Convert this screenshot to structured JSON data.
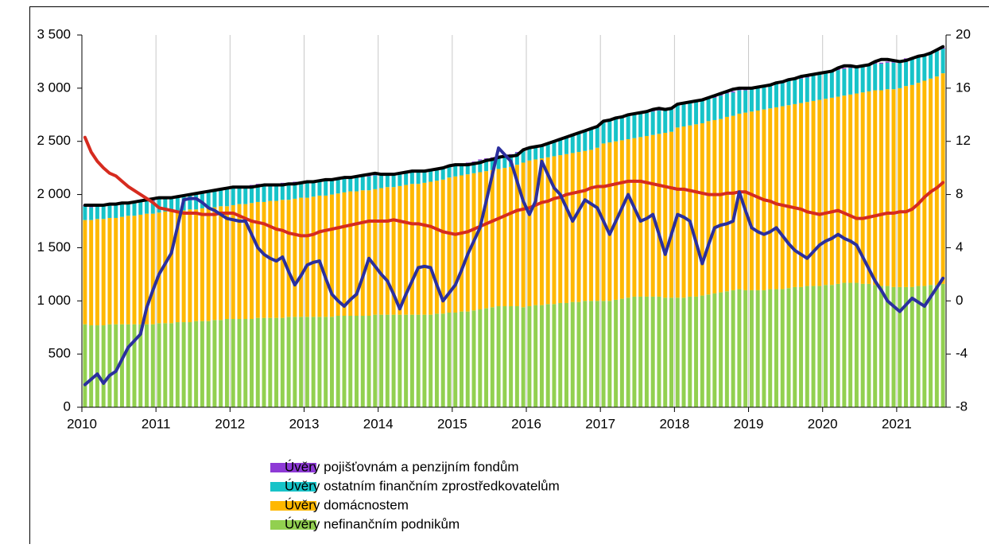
{
  "chart_data": {
    "type": "combo",
    "categories": [
      "2010",
      null,
      null,
      null,
      null,
      null,
      null,
      null,
      null,
      null,
      null,
      null,
      "2011",
      null,
      null,
      null,
      null,
      null,
      null,
      null,
      null,
      null,
      null,
      null,
      "2012",
      null,
      null,
      null,
      null,
      null,
      null,
      null,
      null,
      null,
      null,
      null,
      "2013",
      null,
      null,
      null,
      null,
      null,
      null,
      null,
      null,
      null,
      null,
      null,
      "2014",
      null,
      null,
      null,
      null,
      null,
      null,
      null,
      null,
      null,
      null,
      null,
      "2015",
      null,
      null,
      null,
      null,
      null,
      null,
      null,
      null,
      null,
      null,
      null,
      "2016",
      null,
      null,
      null,
      null,
      null,
      null,
      null,
      null,
      null,
      null,
      null,
      "2017",
      null,
      null,
      null,
      null,
      null,
      null,
      null,
      null,
      null,
      null,
      null,
      "2018",
      null,
      null,
      null,
      null,
      null,
      null,
      null,
      null,
      null,
      null,
      null,
      "2019",
      null,
      null,
      null,
      null,
      null,
      null,
      null,
      null,
      null,
      null,
      null,
      "2020",
      null,
      null,
      null,
      null,
      null,
      null,
      null,
      null,
      null,
      null,
      null,
      "2021",
      null,
      null,
      null,
      null,
      null,
      null,
      null
    ],
    "ylim": [
      0,
      3500
    ],
    "yticks": [
      0,
      500,
      {
        "value": 1000,
        "label": "1 000"
      },
      {
        "value": 1500,
        "label": "1 500"
      },
      {
        "value": 2000,
        "label": "2 000"
      },
      {
        "value": 2500,
        "label": "2 500"
      },
      {
        "value": 3000,
        "label": "3 000"
      },
      {
        "value": 3500,
        "label": "3 500"
      }
    ],
    "y2lim": [
      -8,
      20
    ],
    "y2ticks": [
      -8,
      -4,
      0,
      4,
      8,
      12,
      16,
      20
    ],
    "grid": "x",
    "series": [
      {
        "name": "Úvěry pojišťovnám a penzijním fondům",
        "type": "bar",
        "color": "#8e3ad6",
        "values": [
          10,
          10,
          10,
          10,
          10,
          10,
          10,
          10,
          10,
          10,
          10,
          10,
          10,
          10,
          10,
          10,
          10,
          10,
          10,
          10,
          10,
          10,
          10,
          10,
          10,
          10,
          10,
          10,
          10,
          10,
          10,
          10,
          10,
          10,
          10,
          10,
          10,
          10,
          10,
          10,
          10,
          10,
          10,
          10,
          10,
          10,
          10,
          10,
          10,
          10,
          10,
          10,
          10,
          10,
          10,
          10,
          10,
          10,
          10,
          10,
          10,
          10,
          10,
          10,
          10,
          10,
          10,
          10,
          10,
          10,
          10,
          10,
          10,
          10,
          10,
          10,
          10,
          10,
          10,
          10,
          10,
          10,
          10,
          10,
          10,
          10,
          10,
          10,
          10,
          10,
          10,
          10,
          10,
          10,
          10,
          10,
          10,
          10,
          10,
          10,
          10,
          10,
          10,
          10,
          10,
          10,
          10,
          10,
          10,
          10,
          10,
          10,
          10,
          10,
          10,
          10,
          10,
          10,
          10,
          10,
          10,
          10,
          10,
          10,
          10,
          10,
          10,
          10,
          10,
          10,
          10,
          10,
          10,
          10,
          10,
          10,
          10,
          10,
          10,
          10
        ]
      },
      {
        "name": "Úvěry ostatním finančním zprostředkovatelům",
        "type": "bar",
        "color": "#17c3c8",
        "values": [
          130,
          120,
          120,
          120,
          120,
          120,
          120,
          120,
          120,
          120,
          120,
          120,
          130,
          130,
          130,
          130,
          140,
          140,
          140,
          140,
          150,
          150,
          150,
          160,
          160,
          160,
          160,
          160,
          160,
          150,
          150,
          150,
          150,
          150,
          150,
          140,
          140,
          140,
          140,
          140,
          130,
          130,
          130,
          130,
          130,
          130,
          130,
          130,
          120,
          120,
          120,
          120,
          120,
          120,
          120,
          110,
          110,
          110,
          110,
          110,
          100,
          100,
          100,
          100,
          110,
          110,
          110,
          110,
          110,
          110,
          110,
          110,
          110,
          120,
          120,
          130,
          140,
          150,
          160,
          170,
          180,
          190,
          190,
          200,
          200,
          200,
          210,
          210,
          220,
          220,
          220,
          220,
          220,
          220,
          210,
          210,
          210,
          210,
          210,
          210,
          210,
          210,
          210,
          220,
          220,
          220,
          220,
          210,
          210,
          210,
          220,
          220,
          220,
          220,
          230,
          230,
          230,
          230,
          240,
          240,
          240,
          250,
          250,
          250,
          250,
          250,
          250,
          250,
          250,
          250,
          250,
          250,
          250,
          250,
          250,
          250,
          240,
          240,
          240,
          230
        ]
      },
      {
        "name": "Úvěry domácnostem",
        "type": "bar",
        "color": "#ffb800",
        "values": [
          980,
          990,
          1000,
          1000,
          1000,
          1000,
          1010,
          1020,
          1020,
          1030,
          1040,
          1040,
          1040,
          1050,
          1050,
          1050,
          1050,
          1060,
          1050,
          1060,
          1060,
          1060,
          1070,
          1060,
          1070,
          1080,
          1080,
          1090,
          1090,
          1090,
          1100,
          1100,
          1110,
          1100,
          1110,
          1120,
          1120,
          1130,
          1140,
          1140,
          1150,
          1150,
          1160,
          1170,
          1170,
          1180,
          1180,
          1180,
          1190,
          1200,
          1200,
          1210,
          1220,
          1230,
          1230,
          1240,
          1250,
          1250,
          1260,
          1270,
          1280,
          1280,
          1290,
          1290,
          1290,
          1290,
          1290,
          1290,
          1300,
          1310,
          1330,
          1360,
          1370,
          1370,
          1380,
          1380,
          1390,
          1390,
          1400,
          1400,
          1410,
          1410,
          1420,
          1440,
          1480,
          1490,
          1490,
          1490,
          1490,
          1490,
          1500,
          1510,
          1520,
          1530,
          1550,
          1560,
          1600,
          1610,
          1610,
          1620,
          1620,
          1630,
          1630,
          1630,
          1640,
          1640,
          1650,
          1670,
          1680,
          1690,
          1700,
          1700,
          1710,
          1720,
          1720,
          1720,
          1730,
          1730,
          1740,
          1750,
          1750,
          1760,
          1760,
          1760,
          1770,
          1780,
          1800,
          1810,
          1830,
          1840,
          1850,
          1860,
          1870,
          1890,
          1900,
          1910,
          1930,
          1940,
          1960,
          1980
        ]
      },
      {
        "name": "Úvěry nefinančním podnikům",
        "type": "bar",
        "color": "#92d050",
        "values": [
          780,
          770,
          770,
          770,
          780,
          780,
          780,
          780,
          780,
          780,
          780,
          780,
          790,
          790,
          790,
          800,
          800,
          800,
          810,
          810,
          810,
          820,
          820,
          830,
          830,
          830,
          830,
          830,
          840,
          840,
          840,
          840,
          840,
          850,
          850,
          850,
          850,
          850,
          850,
          850,
          850,
          860,
          860,
          860,
          860,
          860,
          860,
          870,
          870,
          870,
          870,
          870,
          870,
          870,
          870,
          870,
          870,
          880,
          880,
          890,
          890,
          900,
          900,
          910,
          920,
          930,
          940,
          950,
          950,
          950,
          950,
          940,
          950,
          960,
          960,
          970,
          970,
          980,
          980,
          990,
          990,
          1000,
          1000,
          1000,
          1000,
          1000,
          1010,
          1020,
          1030,
          1040,
          1040,
          1040,
          1040,
          1040,
          1030,
          1030,
          1030,
          1030,
          1040,
          1040,
          1050,
          1060,
          1070,
          1080,
          1090,
          1100,
          1110,
          1100,
          1100,
          1100,
          1100,
          1110,
          1110,
          1110,
          1120,
          1130,
          1130,
          1140,
          1140,
          1140,
          1150,
          1150,
          1160,
          1170,
          1170,
          1170,
          1160,
          1160,
          1150,
          1140,
          1140,
          1130,
          1130,
          1130,
          1130,
          1140,
          1140,
          1150,
          1150,
          1160
        ]
      },
      {
        "type": "line",
        "color": "#000000",
        "values": [
          1900,
          1900,
          1900,
          1900,
          1910,
          1910,
          1920,
          1920,
          1930,
          1940,
          1950,
          1960,
          1970,
          1970,
          1970,
          1980,
          1990,
          2000,
          2010,
          2020,
          2030,
          2040,
          2050,
          2060,
          2070,
          2070,
          2070,
          2070,
          2080,
          2090,
          2090,
          2090,
          2090,
          2100,
          2100,
          2110,
          2120,
          2120,
          2130,
          2140,
          2140,
          2150,
          2160,
          2160,
          2170,
          2180,
          2190,
          2200,
          2190,
          2190,
          2190,
          2200,
          2210,
          2220,
          2220,
          2220,
          2230,
          2240,
          2250,
          2270,
          2280,
          2280,
          2280,
          2290,
          2300,
          2320,
          2330,
          2350,
          2360,
          2360,
          2370,
          2420,
          2440,
          2450,
          2460,
          2480,
          2500,
          2520,
          2540,
          2560,
          2580,
          2600,
          2620,
          2640,
          2690,
          2700,
          2720,
          2730,
          2750,
          2760,
          2770,
          2780,
          2800,
          2810,
          2800,
          2810,
          2850,
          2860,
          2870,
          2880,
          2890,
          2910,
          2930,
          2950,
          2970,
          2990,
          3000,
          3000,
          3000,
          3010,
          3020,
          3030,
          3050,
          3060,
          3080,
          3090,
          3110,
          3120,
          3130,
          3140,
          3150,
          3160,
          3190,
          3210,
          3210,
          3200,
          3210,
          3220,
          3250,
          3270,
          3270,
          3260,
          3250,
          3260,
          3280,
          3300,
          3310,
          3330,
          3360,
          3390
        ]
      },
      {
        "type": "line",
        "axis": "y2",
        "color": "#d62b1f",
        "values": [
          12.3,
          11.2,
          10.5,
          10.0,
          9.6,
          9.4,
          9.0,
          8.6,
          8.3,
          8.0,
          7.7,
          7.4,
          7.0,
          6.9,
          6.8,
          6.7,
          6.6,
          6.6,
          6.6,
          6.5,
          6.5,
          6.5,
          6.6,
          6.6,
          6.6,
          6.4,
          6.2,
          6.0,
          5.9,
          5.8,
          5.6,
          5.4,
          5.3,
          5.1,
          5.0,
          4.9,
          4.9,
          5.0,
          5.2,
          5.3,
          5.4,
          5.5,
          5.6,
          5.7,
          5.8,
          5.9,
          6.0,
          6.0,
          6.0,
          6.0,
          6.1,
          6.0,
          5.9,
          5.8,
          5.8,
          5.7,
          5.6,
          5.4,
          5.2,
          5.1,
          5.0,
          5.1,
          5.2,
          5.4,
          5.6,
          5.8,
          6.0,
          6.2,
          6.4,
          6.6,
          6.8,
          6.9,
          7.0,
          7.2,
          7.4,
          7.5,
          7.7,
          7.8,
          8.0,
          8.1,
          8.2,
          8.3,
          8.5,
          8.6,
          8.6,
          8.7,
          8.8,
          8.9,
          9.0,
          9.0,
          9.0,
          8.9,
          8.8,
          8.7,
          8.6,
          8.5,
          8.4,
          8.4,
          8.3,
          8.2,
          8.1,
          8.0,
          8.0,
          8.0,
          8.1,
          8.1,
          8.2,
          8.2,
          8.0,
          7.8,
          7.6,
          7.5,
          7.3,
          7.2,
          7.1,
          7.0,
          6.9,
          6.7,
          6.6,
          6.5,
          6.6,
          6.7,
          6.8,
          6.6,
          6.4,
          6.2,
          6.2,
          6.3,
          6.4,
          6.5,
          6.6,
          6.6,
          6.7,
          6.7,
          6.9,
          7.3,
          7.8,
          8.2,
          8.5,
          8.9
        ]
      },
      {
        "type": "line",
        "axis": "y2",
        "color": "#2b2f9e",
        "values": [
          -6.3,
          -5.9,
          -5.5,
          -6.2,
          -5.6,
          -5.3,
          -4.4,
          -3.5,
          -3.0,
          -2.5,
          -0.5,
          0.8,
          2.0,
          2.8,
          3.6,
          5.6,
          7.6,
          7.7,
          7.7,
          7.4,
          7.0,
          6.8,
          6.5,
          6.2,
          6.1,
          6.0,
          6.0,
          5.0,
          4.0,
          3.5,
          3.2,
          3.0,
          3.3,
          2.2,
          1.2,
          1.9,
          2.7,
          2.9,
          3.0,
          1.7,
          0.5,
          0.0,
          -0.4,
          0.1,
          0.5,
          1.8,
          3.2,
          2.6,
          2.0,
          1.5,
          0.5,
          -0.6,
          0.5,
          1.5,
          2.5,
          2.6,
          2.5,
          1.2,
          0.0,
          0.6,
          1.2,
          2.3,
          3.5,
          4.5,
          5.5,
          7.5,
          9.5,
          11.5,
          11.0,
          10.5,
          9.0,
          7.5,
          6.5,
          7.5,
          10.5,
          9.5,
          8.5,
          8.0,
          7.0,
          6.0,
          6.8,
          7.6,
          7.3,
          7.0,
          6.0,
          5.0,
          6.0,
          7.0,
          8.0,
          7.0,
          6.0,
          6.2,
          6.5,
          5.0,
          3.5,
          5.0,
          6.5,
          6.3,
          6.0,
          4.4,
          2.8,
          4.2,
          5.5,
          5.7,
          5.8,
          6.0,
          8.2,
          6.8,
          5.5,
          5.2,
          5.0,
          5.2,
          5.5,
          4.9,
          4.3,
          3.8,
          3.5,
          3.2,
          3.7,
          4.2,
          4.5,
          4.7,
          5.0,
          4.7,
          4.5,
          4.2,
          3.3,
          2.4,
          1.5,
          0.8,
          0.0,
          -0.4,
          -0.8,
          -0.3,
          0.2,
          -0.1,
          -0.4,
          0.3,
          1.0,
          1.7
        ]
      }
    ]
  }
}
